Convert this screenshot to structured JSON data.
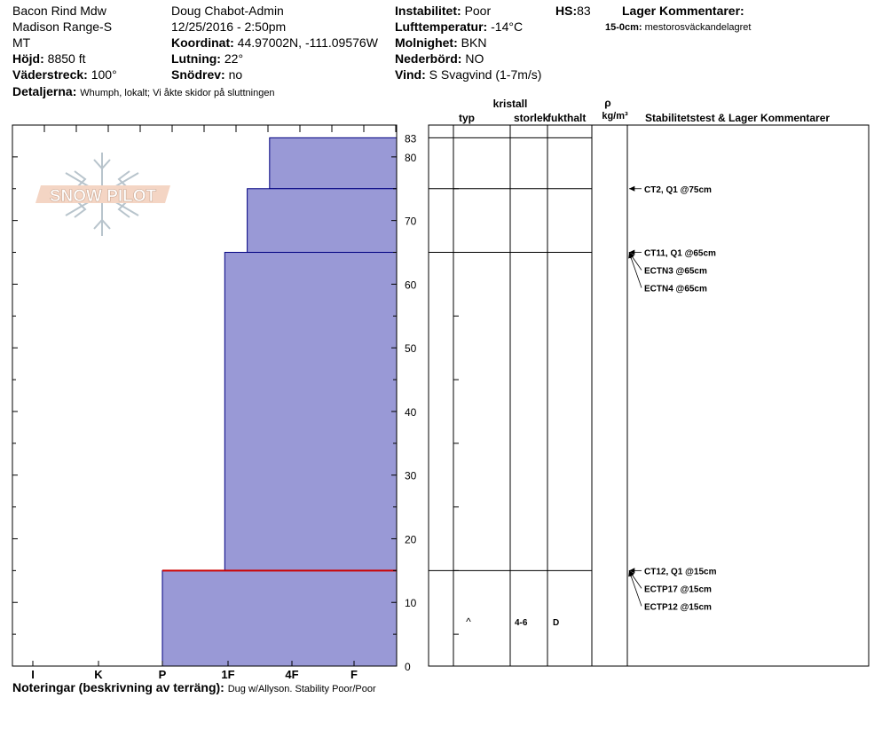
{
  "header": {
    "location": "Bacon Rind Mdw",
    "range": "Madison Range-S",
    "state": "MT",
    "elevation_label": "Höjd:",
    "elevation_value": "8850 ft",
    "aspect_label": "Väderstreck:",
    "aspect_value": "100°",
    "details_label": "Detaljerna:",
    "details_value": "Whumph, lokalt;  Vi åkte skidor på sluttningen",
    "observer": "Doug Chabot-Admin",
    "datetime": "12/25/2016 - 2:50pm",
    "coord_label": "Koordinat:",
    "coord_value": "44.97002N, -111.09576W",
    "slope_label": "Lutning:",
    "slope_value": "22°",
    "drift_label": "Snödrev:",
    "drift_value": "no",
    "instability_label": "Instabilitet:",
    "instability_value": "Poor",
    "hs_label": "HS:",
    "hs_value": "83",
    "airtemp_label": "Lufttemperatur:",
    "airtemp_value": "-14°C",
    "cloud_label": "Molnighet:",
    "cloud_value": "BKN",
    "precip_label": "Nederbörd:",
    "precip_value": "NO",
    "wind_label": "Vind:",
    "wind_value": "S  Svagvind (1-7m/s)",
    "layer_comments_title": "Lager Kommentarer:",
    "layer_comment_range": "15-0cm:",
    "layer_comment_text": "mestorosväckandelagret"
  },
  "footer": {
    "notes_label": "Noteringar (beskrivning av terräng):",
    "notes_value": "Dug w/Allyson. Stability Poor/Poor"
  },
  "logo": {
    "text": "SNOW PILOT"
  },
  "table_headers": {
    "crystal": "kristall",
    "type": "typ",
    "size": "storlek",
    "moisture": "fukthalt",
    "rho": "ρ",
    "density_unit": "kg/m³",
    "stability": "Stabilitetstest & Lager Kommentarer"
  },
  "colors": {
    "layer_fill": "#9999d6",
    "layer_edge": "#000080",
    "weak_layer": "#cc0000"
  },
  "chart_data": {
    "type": "bar",
    "title": "",
    "xlabel": "",
    "ylabel": "",
    "ylim": [
      0,
      85
    ],
    "hardness_ticks": [
      "I",
      "K",
      "P",
      "1F",
      "4F",
      "F"
    ],
    "y_ticks": [
      0,
      10,
      20,
      30,
      40,
      50,
      60,
      70,
      80
    ],
    "hs_label": "83",
    "layers": [
      {
        "top": 83,
        "bottom": 75,
        "hardness": "4F-"
      },
      {
        "top": 75,
        "bottom": 65,
        "hardness": "4F"
      },
      {
        "top": 65,
        "bottom": 15,
        "hardness": "4F+"
      },
      {
        "top": 15,
        "bottom": 0,
        "hardness": "F"
      }
    ],
    "hardness_index": [
      {
        "top": 83,
        "bottom": 75,
        "index": 4.65
      },
      {
        "top": 75,
        "bottom": 65,
        "index": 4.3
      },
      {
        "top": 65,
        "bottom": 15,
        "index": 3.95
      },
      {
        "top": 15,
        "bottom": 0,
        "index": 3.0
      }
    ],
    "layer_boundaries": [
      83,
      75,
      65,
      15
    ],
    "weak_layer_depth": 15,
    "crystal_rows": [
      {
        "depth": 7,
        "type_symbol": "^",
        "size": "4-6",
        "moisture": "D"
      }
    ],
    "stability_tests": [
      {
        "depth": 75,
        "label": "CT2, Q1 @75cm"
      },
      {
        "depth": 65,
        "label": "CT11, Q1 @65cm"
      },
      {
        "depth": 65,
        "label": "ECTN3 @65cm"
      },
      {
        "depth": 65,
        "label": "ECTN4 @65cm"
      },
      {
        "depth": 15,
        "label": "CT12, Q1 @15cm"
      },
      {
        "depth": 15,
        "label": "ECTP17 @15cm"
      },
      {
        "depth": 15,
        "label": "ECTP12 @15cm"
      }
    ]
  }
}
